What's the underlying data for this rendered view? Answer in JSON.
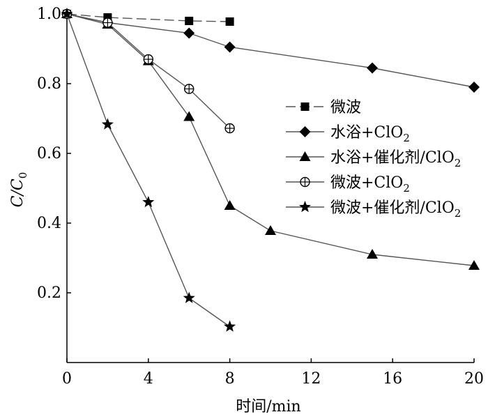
{
  "chart_data": {
    "type": "line",
    "xlabel": "时间/min",
    "ylabel": "C/C",
    "ylabel_sub": "0",
    "xlim": [
      0,
      20
    ],
    "ylim": [
      0,
      1.0
    ],
    "xticks": [
      0,
      4,
      8,
      12,
      16,
      20
    ],
    "yticks": [
      0.2,
      0.4,
      0.6,
      0.8,
      1.0
    ],
    "ytick_labels": [
      "0.2",
      "0.4",
      "0.6",
      "0.8",
      "1.0"
    ],
    "grid": false,
    "legend_position": "right",
    "series": [
      {
        "name": "微波",
        "marker": "square",
        "line": "dashed",
        "x": [
          0,
          2,
          6,
          8
        ],
        "y": [
          1.0,
          0.99,
          0.98,
          0.978
        ]
      },
      {
        "name": "水浴+ClO",
        "name_sub": "2",
        "marker": "diamond",
        "line": "solid",
        "x": [
          0,
          2,
          6,
          8,
          15,
          20
        ],
        "y": [
          1.0,
          0.975,
          0.945,
          0.905,
          0.845,
          0.79
        ]
      },
      {
        "name": "水浴+催化剂/ClO",
        "name_sub": "2",
        "marker": "triangle",
        "line": "solid",
        "x": [
          0,
          2,
          4,
          6,
          8,
          10,
          15,
          20
        ],
        "y": [
          1.0,
          0.97,
          0.865,
          0.705,
          0.45,
          0.378,
          0.31,
          0.278
        ]
      },
      {
        "name": "微波+ClO",
        "name_sub": "2",
        "marker": "circle-plus",
        "line": "solid",
        "x": [
          0,
          2,
          4,
          6,
          8
        ],
        "y": [
          1.0,
          0.975,
          0.87,
          0.785,
          0.672
        ]
      },
      {
        "name": "微波+催化剂/ClO",
        "name_sub": "2",
        "marker": "star",
        "line": "solid",
        "x": [
          0,
          2,
          4,
          6,
          8
        ],
        "y": [
          1.0,
          0.683,
          0.46,
          0.185,
          0.103
        ]
      }
    ]
  }
}
